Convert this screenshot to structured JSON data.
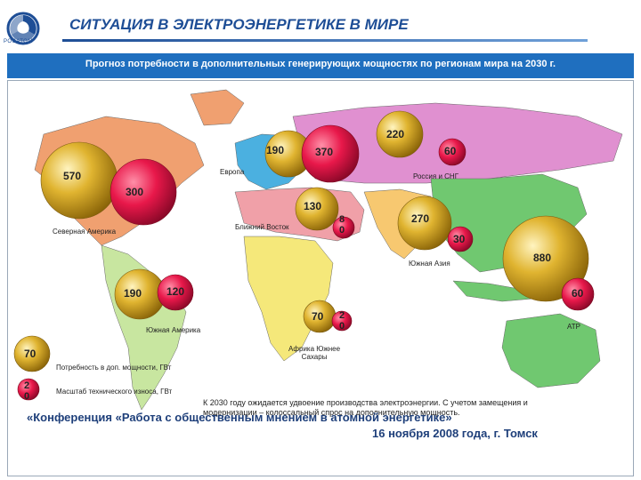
{
  "header": {
    "logo_text": "РОСАТОМ",
    "title": "СИТУАЦИЯ В ЭЛЕКТРОЭНЕРГЕТИКЕ В МИРЕ",
    "subtitle": "Прогноз потребности в дополнительных генерирующих мощностях по регионам мира на 2030 г."
  },
  "colors": {
    "accent": "#1e4e96",
    "subtitle_bar": "#1f6fbf",
    "new_capacity_circle": "#d4a017",
    "replacement_circle": "#e8184a",
    "north_america": "#f0a070",
    "south_america": "#c8e6a0",
    "europe": "#4bb0e0",
    "russia_cis": "#e090d0",
    "middle_east": "#f0a0a8",
    "africa": "#f5e87a",
    "south_asia": "#f7c870",
    "apac": "#70c870",
    "ocean": "#ffffff"
  },
  "regions": {
    "north_america": {
      "label": "Северная Америка",
      "new_capacity": "570",
      "replacement": "300"
    },
    "europe": {
      "label": "Европа",
      "new_capacity": "190",
      "replacement": "370"
    },
    "russia_cis": {
      "label": "Россия и СНГ",
      "new_capacity": "220",
      "replacement": "60"
    },
    "middle_east": {
      "label": "Ближний Восток",
      "new_capacity": "130",
      "replacement": "8\n0"
    },
    "south_asia": {
      "label": "Южная Азия",
      "new_capacity": "270",
      "replacement": "30"
    },
    "apac": {
      "label": "АТР",
      "new_capacity": "880",
      "replacement": "60"
    },
    "south_america": {
      "label": "Южная Америка",
      "new_capacity": "190",
      "replacement": "120"
    },
    "africa": {
      "label": "Африка Южнее\nСахары",
      "new_capacity": "70",
      "replacement": "2\n0"
    }
  },
  "legend": {
    "new_value": "70",
    "new_label": "Потребность в доп. мощности, ГВт",
    "rep_value": "2\n0",
    "rep_label": "Масштаб технического износа, ГВт"
  },
  "footer": {
    "note": "К 2030 году ожидается удвоение производства электроэнергии. С учетом замещения и модернизации – колоссальный спрос на дополнительную мощность.",
    "conference": "«Конференция «Работа с общественным мнением в атомной энергетике»",
    "date": "16 ноября 2008 года, г. Томск"
  }
}
